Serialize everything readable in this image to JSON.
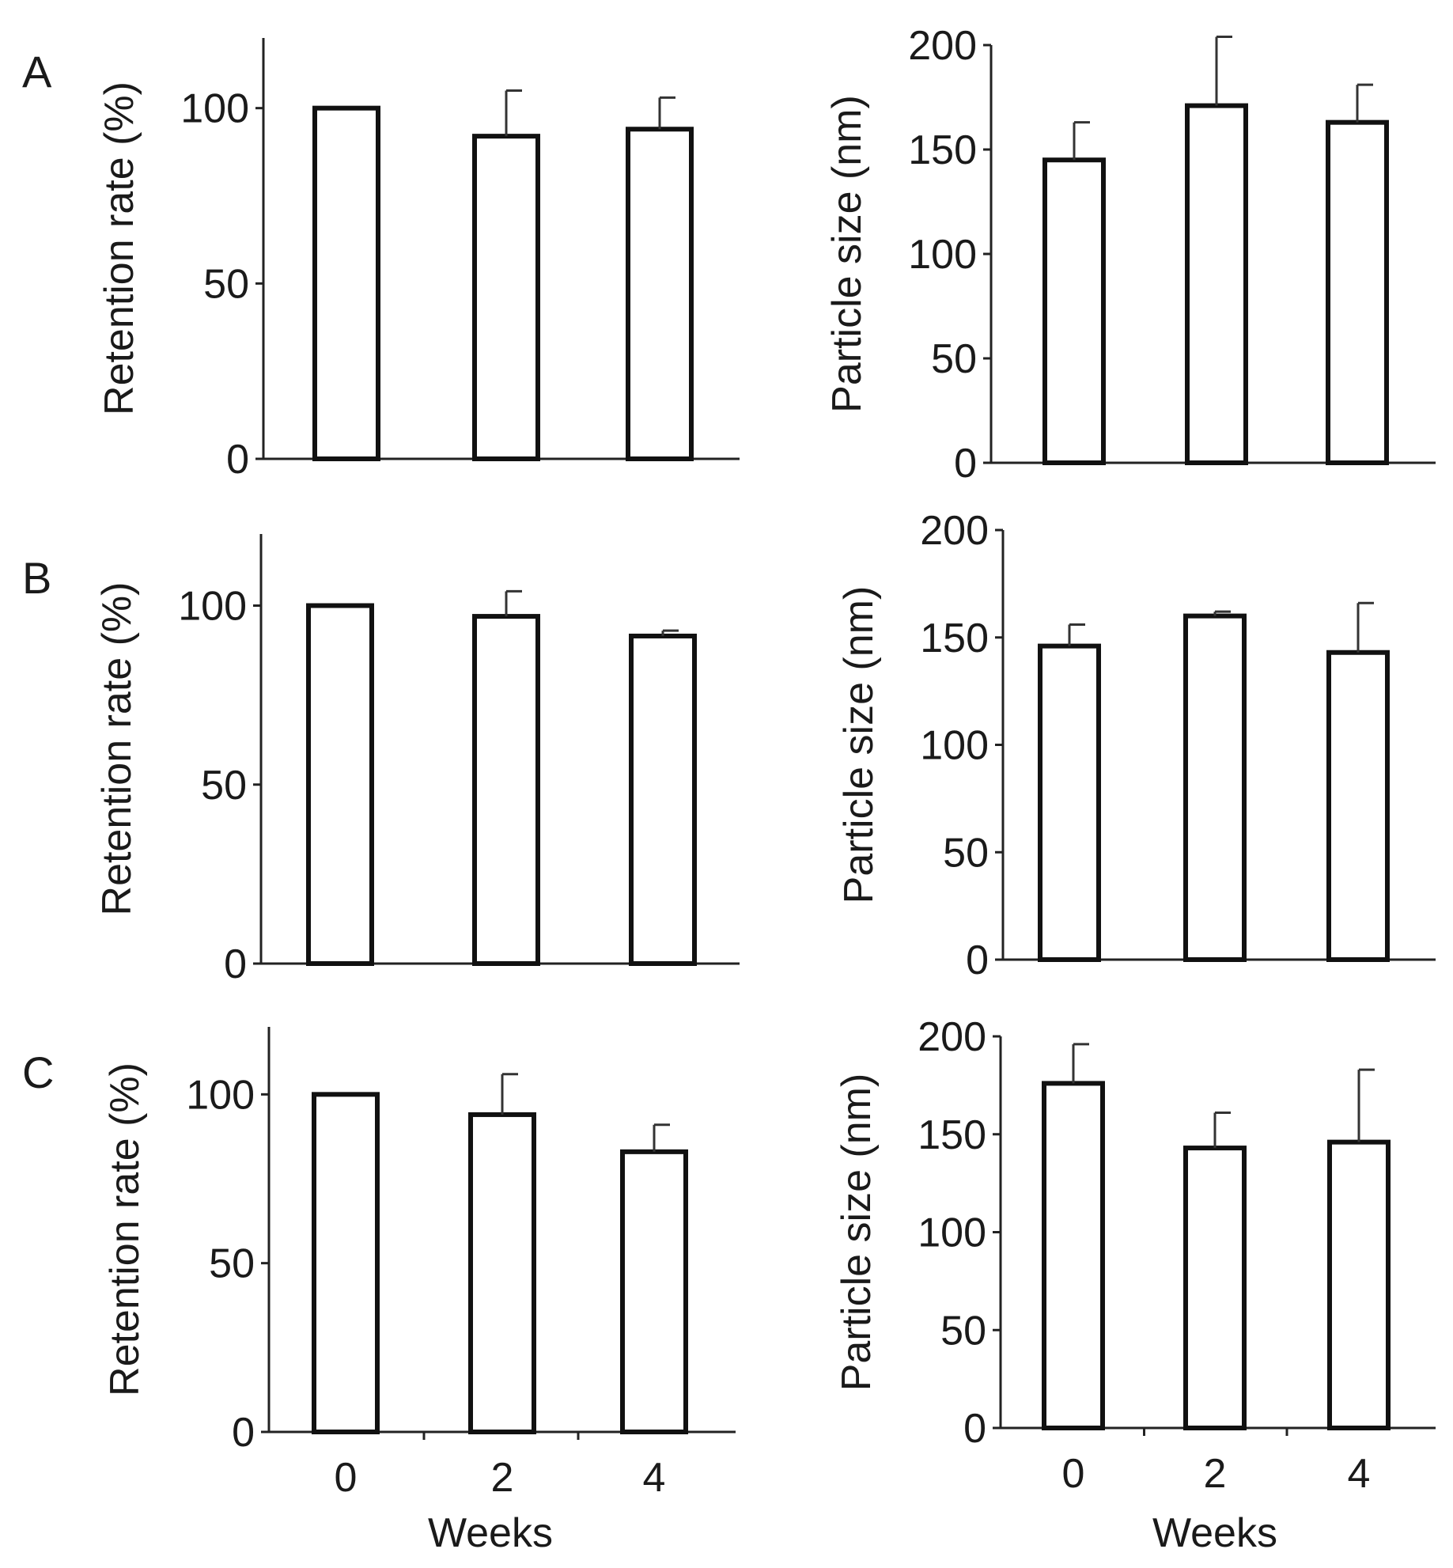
{
  "figure": {
    "panel_labels": [
      "A",
      "B",
      "C"
    ],
    "x_axis_title": "Weeks"
  },
  "chart_data": [
    {
      "id": "A-retention",
      "panel": "A",
      "type": "bar",
      "title": "",
      "xlabel": "",
      "ylabel": "Retention rate (%)",
      "categories": [
        "0",
        "2",
        "4"
      ],
      "values": [
        100,
        92,
        94
      ],
      "errors": [
        0,
        13,
        9
      ],
      "ylim": [
        0,
        120
      ],
      "yticks": [
        0,
        50,
        100
      ],
      "grid": false
    },
    {
      "id": "A-size",
      "panel": "A",
      "type": "bar",
      "title": "",
      "xlabel": "",
      "ylabel": "Particle size (nm)",
      "categories": [
        "0",
        "2",
        "4"
      ],
      "values": [
        145,
        171,
        163
      ],
      "errors": [
        18,
        33,
        18
      ],
      "ylim": [
        0,
        200
      ],
      "yticks": [
        0,
        50,
        100,
        150,
        200
      ],
      "grid": false
    },
    {
      "id": "B-retention",
      "panel": "B",
      "type": "bar",
      "title": "",
      "xlabel": "",
      "ylabel": "Retention rate (%)",
      "categories": [
        "0",
        "2",
        "4"
      ],
      "values": [
        100,
        97,
        91.5
      ],
      "errors": [
        0,
        7,
        1.5
      ],
      "ylim": [
        0,
        120
      ],
      "yticks": [
        0,
        50,
        100
      ],
      "grid": false
    },
    {
      "id": "B-size",
      "panel": "B",
      "type": "bar",
      "title": "",
      "xlabel": "",
      "ylabel": "Particle size (nm)",
      "categories": [
        "0",
        "2",
        "4"
      ],
      "values": [
        146,
        160,
        143
      ],
      "errors": [
        10,
        2,
        23
      ],
      "ylim": [
        0,
        200
      ],
      "yticks": [
        0,
        50,
        100,
        150,
        200
      ],
      "grid": false
    },
    {
      "id": "C-retention",
      "panel": "C",
      "type": "bar",
      "title": "",
      "xlabel": "Weeks",
      "ylabel": "Retention rate (%)",
      "categories": [
        "0",
        "2",
        "4"
      ],
      "values": [
        100,
        94,
        83
      ],
      "errors": [
        0,
        12,
        8
      ],
      "ylim": [
        0,
        120
      ],
      "yticks": [
        0,
        50,
        100
      ],
      "grid": false
    },
    {
      "id": "C-size",
      "panel": "C",
      "type": "bar",
      "title": "",
      "xlabel": "Weeks",
      "ylabel": "Particle size (nm)",
      "categories": [
        "0",
        "2",
        "4"
      ],
      "values": [
        176,
        143,
        146
      ],
      "errors": [
        20,
        18,
        37
      ],
      "ylim": [
        0,
        200
      ],
      "yticks": [
        0,
        50,
        100,
        150,
        200
      ],
      "grid": false
    }
  ]
}
